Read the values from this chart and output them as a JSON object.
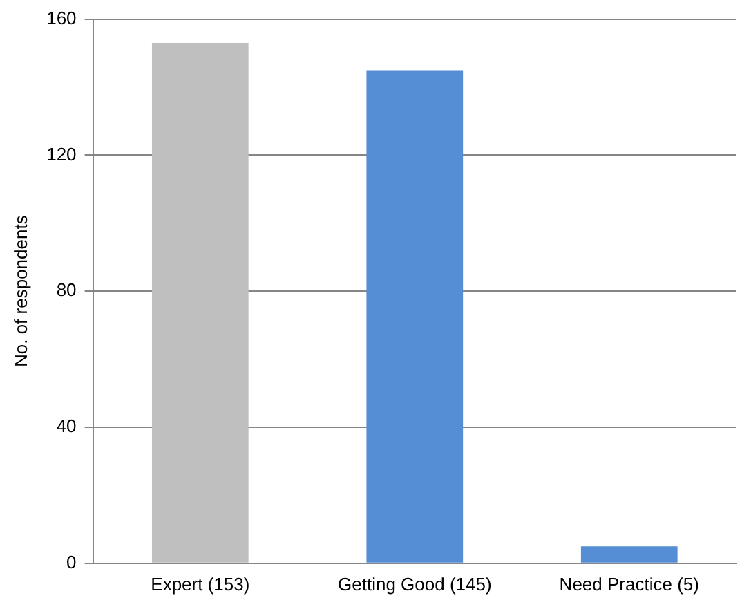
{
  "chart_data": {
    "type": "bar",
    "ylabel": "No. of respondents",
    "categories": [
      "Expert (153)",
      "Getting Good (145)",
      "Need Practice (5)"
    ],
    "values": [
      153,
      145,
      5
    ],
    "colors": [
      "#bfbfbf",
      "#558ed5",
      "#558ed5"
    ],
    "ylim": [
      0,
      160
    ],
    "yticks": [
      0,
      40,
      80,
      120,
      160
    ],
    "grid": "y",
    "legend": false
  }
}
